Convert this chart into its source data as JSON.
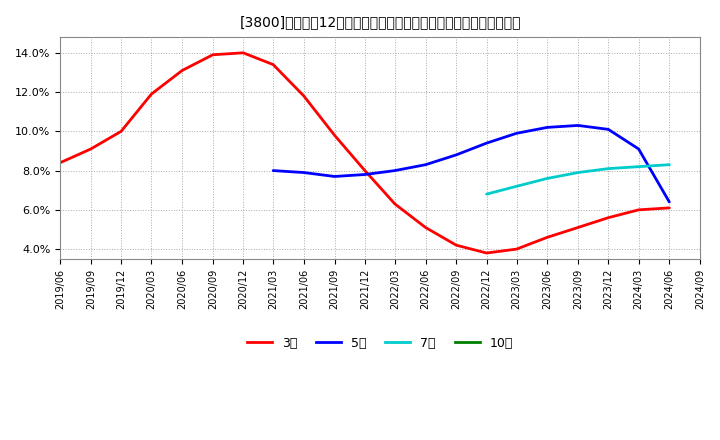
{
  "title": "[3800]　売上高12か月移動合計の対前年同期増減率の平均値の推移",
  "background_color": "#ffffff",
  "plot_bg_color": "#ffffff",
  "grid_color": "#aaaaaa",
  "ylim": [
    0.035,
    0.148
  ],
  "yticks": [
    0.04,
    0.06,
    0.08,
    0.1,
    0.12,
    0.14
  ],
  "series": {
    "3年": {
      "color": "#ff0000",
      "points": [
        [
          "2019/06",
          0.084
        ],
        [
          "2019/09",
          0.091
        ],
        [
          "2019/12",
          0.1
        ],
        [
          "2020/03",
          0.119
        ],
        [
          "2020/06",
          0.131
        ],
        [
          "2020/09",
          0.139
        ],
        [
          "2020/12",
          0.14
        ],
        [
          "2021/03",
          0.134
        ],
        [
          "2021/06",
          0.118
        ],
        [
          "2021/09",
          0.098
        ],
        [
          "2021/12",
          0.08
        ],
        [
          "2022/03",
          0.063
        ],
        [
          "2022/06",
          0.051
        ],
        [
          "2022/09",
          0.042
        ],
        [
          "2022/12",
          0.038
        ],
        [
          "2023/03",
          0.04
        ],
        [
          "2023/06",
          0.046
        ],
        [
          "2023/09",
          0.051
        ],
        [
          "2023/12",
          0.056
        ],
        [
          "2024/03",
          0.06
        ],
        [
          "2024/06",
          0.061
        ]
      ]
    },
    "5年": {
      "color": "#0000ff",
      "points": [
        [
          "2021/03",
          0.08
        ],
        [
          "2021/06",
          0.079
        ],
        [
          "2021/09",
          0.077
        ],
        [
          "2021/12",
          0.078
        ],
        [
          "2022/03",
          0.08
        ],
        [
          "2022/06",
          0.083
        ],
        [
          "2022/09",
          0.088
        ],
        [
          "2022/12",
          0.094
        ],
        [
          "2023/03",
          0.099
        ],
        [
          "2023/06",
          0.102
        ],
        [
          "2023/09",
          0.103
        ],
        [
          "2023/12",
          0.101
        ],
        [
          "2024/03",
          0.091
        ],
        [
          "2024/06",
          0.064
        ]
      ]
    },
    "7年": {
      "color": "#00cccc",
      "points": [
        [
          "2022/12",
          0.068
        ],
        [
          "2023/03",
          0.072
        ],
        [
          "2023/06",
          0.076
        ],
        [
          "2023/09",
          0.079
        ],
        [
          "2023/12",
          0.081
        ],
        [
          "2024/03",
          0.082
        ],
        [
          "2024/06",
          0.083
        ]
      ]
    },
    "10年": {
      "color": "#008000",
      "points": []
    }
  },
  "legend_labels": [
    "3年",
    "5年",
    "7年",
    "10年"
  ],
  "legend_colors": [
    "#ff0000",
    "#0000ff",
    "#00cccc",
    "#008000"
  ],
  "xtick_labels": [
    "2019/06",
    "2019/09",
    "2019/12",
    "2020/03",
    "2020/06",
    "2020/09",
    "2020/12",
    "2021/03",
    "2021/06",
    "2021/09",
    "2021/12",
    "2022/03",
    "2022/06",
    "2022/09",
    "2022/12",
    "2023/03",
    "2023/06",
    "2023/09",
    "2023/12",
    "2024/03",
    "2024/06",
    "2024/09"
  ]
}
